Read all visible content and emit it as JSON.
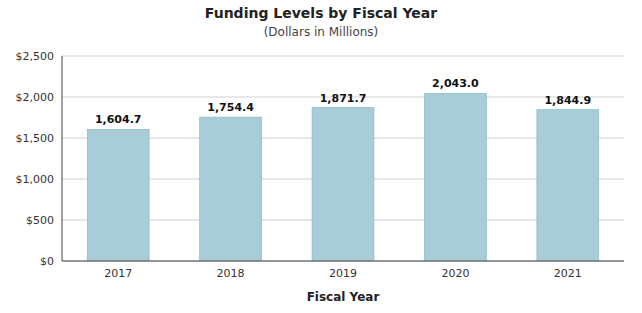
{
  "chart_data": {
    "type": "bar",
    "title": "Funding Levels by Fiscal Year",
    "subtitle": "(Dollars in Millions)",
    "x_label": "Fiscal Year",
    "categories": [
      "2017",
      "2018",
      "2019",
      "2020",
      "2021"
    ],
    "values": [
      1604.7,
      1754.4,
      1871.7,
      2043.0,
      1844.9
    ],
    "value_labels": [
      "1,604.7",
      "1,754.4",
      "1,871.7",
      "2,043.0",
      "1,844.9"
    ],
    "data_labels": true,
    "color": "#a8cdd8",
    "ylim": [
      0,
      2500
    ],
    "yticks": [
      {
        "value": 0,
        "label": "$0"
      },
      {
        "value": 500,
        "label": "$500"
      },
      {
        "value": 1000,
        "label": "$1,000"
      },
      {
        "value": 1500,
        "label": "$1,500"
      },
      {
        "value": 2000,
        "label": "$2,000"
      },
      {
        "value": 2500,
        "label": "$2,500"
      }
    ],
    "grid": true
  }
}
